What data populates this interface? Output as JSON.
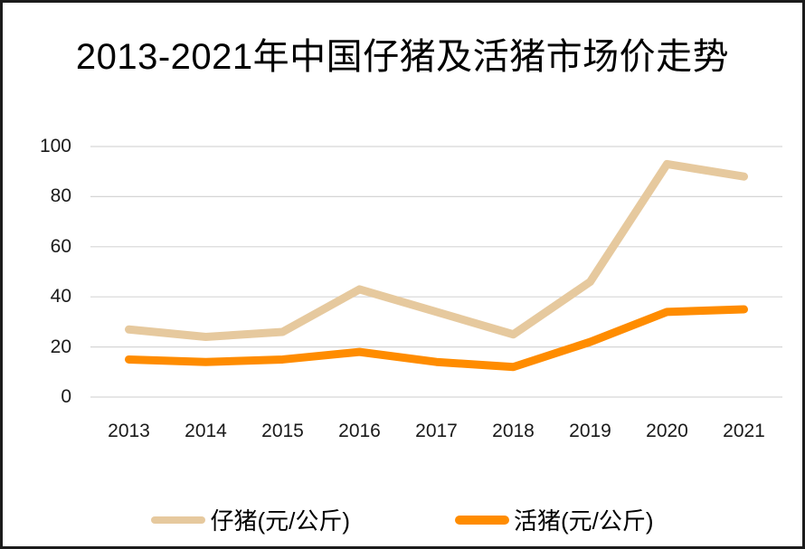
{
  "chart_data": {
    "type": "line",
    "title": "2013-2021年中国仔猪及活猪市场价走势",
    "categories": [
      "2013",
      "2014",
      "2015",
      "2016",
      "2017",
      "2018",
      "2019",
      "2020",
      "2021"
    ],
    "series": [
      {
        "id": "piglet",
        "name": "仔猪(元/公斤)",
        "color": "#E6C99E",
        "values": [
          27,
          24,
          26,
          43,
          34,
          25,
          46,
          93,
          88
        ]
      },
      {
        "id": "live-hog",
        "name": "活猪(元/公斤)",
        "color": "#FF8C00",
        "values": [
          15,
          14,
          15,
          18,
          14,
          12,
          22,
          34,
          35
        ]
      }
    ],
    "xlabel": "",
    "ylabel": "",
    "ylim": [
      0,
      100
    ],
    "yticks": [
      0,
      20,
      40,
      60,
      80,
      100
    ],
    "grid": true,
    "gridline_color": "#D6D6D6",
    "legend_position": "bottom"
  }
}
